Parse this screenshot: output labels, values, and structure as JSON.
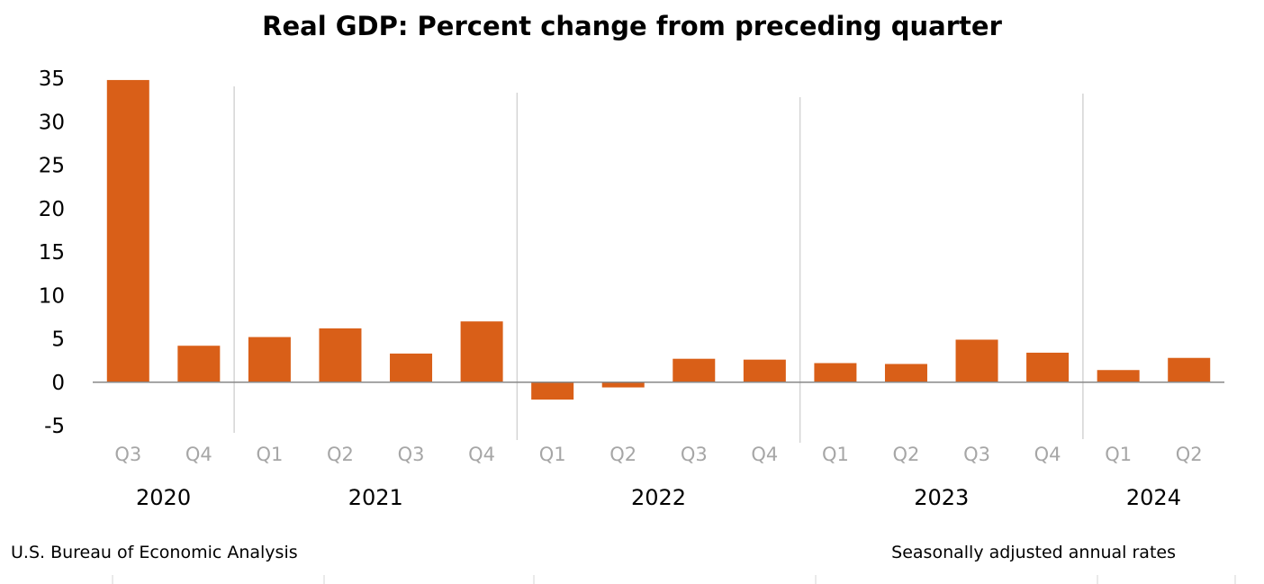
{
  "chart_data": {
    "type": "bar",
    "title": "Real GDP: Percent change from preceding quarter",
    "categories": [
      "Q3",
      "Q4",
      "Q1",
      "Q2",
      "Q3",
      "Q4",
      "Q1",
      "Q2",
      "Q3",
      "Q4",
      "Q1",
      "Q2",
      "Q3",
      "Q4",
      "Q1",
      "Q2"
    ],
    "values": [
      34.8,
      4.2,
      5.2,
      6.2,
      3.3,
      7.0,
      -2.0,
      -0.6,
      2.7,
      2.6,
      2.2,
      2.1,
      4.9,
      3.4,
      1.4,
      2.8
    ],
    "year_groups": [
      {
        "label": "2020",
        "start": 0,
        "count": 2
      },
      {
        "label": "2021",
        "start": 2,
        "count": 4
      },
      {
        "label": "2022",
        "start": 6,
        "count": 4
      },
      {
        "label": "2023",
        "start": 10,
        "count": 4
      },
      {
        "label": "2024",
        "start": 14,
        "count": 2
      }
    ],
    "yticks": [
      35,
      30,
      25,
      20,
      15,
      10,
      5,
      0,
      -5
    ],
    "ylim": [
      -5,
      35
    ],
    "xlabel": "",
    "ylabel": "",
    "grid": false,
    "bar_color": "#d95f18",
    "axis_color": "#888888",
    "separator_color": "#d4d4d4",
    "quarter_label_color": "#a6a6a6"
  },
  "footer": {
    "source": "U.S. Bureau of Economic Analysis",
    "note": "Seasonally adjusted annual rates"
  }
}
